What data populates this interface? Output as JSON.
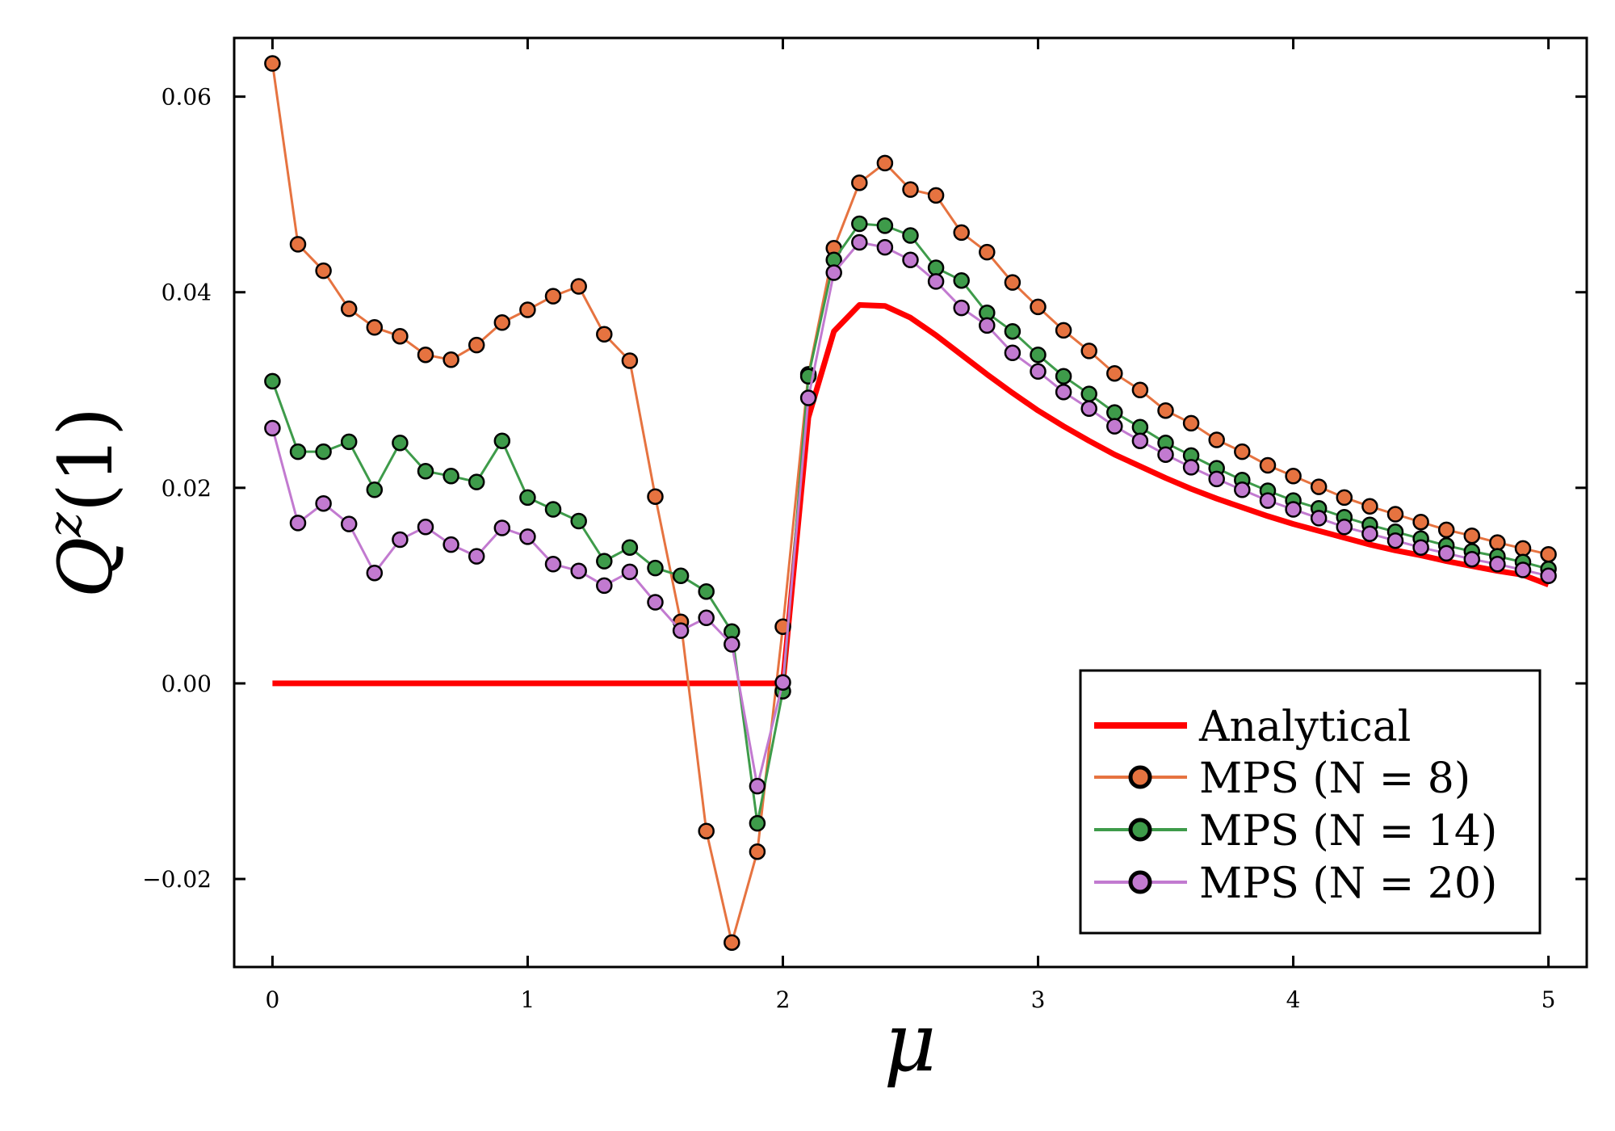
{
  "chart_data": {
    "type": "line",
    "title": "",
    "xlabel": "μ",
    "ylabel_main": "Q",
    "ylabel_sup": "z",
    "ylabel_arg": "(1)",
    "xlim": [
      -0.15,
      5.15
    ],
    "ylim": [
      -0.029,
      0.066
    ],
    "xticks": [
      0,
      1,
      2,
      3,
      4,
      5
    ],
    "xtick_labels": [
      "0",
      "1",
      "2",
      "3",
      "4",
      "5"
    ],
    "yticks": [
      -0.02,
      0.0,
      0.02,
      0.04,
      0.06
    ],
    "ytick_labels": [
      "−0.02",
      "0.00",
      "0.02",
      "0.04",
      "0.06"
    ],
    "grid": false,
    "legend_position": "bottom-right",
    "x": [
      0.0,
      0.1,
      0.2,
      0.3,
      0.4,
      0.5,
      0.6,
      0.7,
      0.8,
      0.9,
      1.0,
      1.1,
      1.2,
      1.3,
      1.4,
      1.5,
      1.6,
      1.7,
      1.8,
      1.9,
      2.0,
      2.1,
      2.2,
      2.3,
      2.4,
      2.5,
      2.6,
      2.7,
      2.8,
      2.9,
      3.0,
      3.1,
      3.2,
      3.3,
      3.4,
      3.5,
      3.6,
      3.7,
      3.8,
      3.9,
      4.0,
      4.1,
      4.2,
      4.3,
      4.4,
      4.5,
      4.6,
      4.7,
      4.8,
      4.9,
      5.0
    ],
    "series": [
      {
        "name": "Analytical",
        "color": "#ff0000",
        "markers": false,
        "values": [
          0,
          0,
          0,
          0,
          0,
          0,
          0,
          0,
          0,
          0,
          0,
          0,
          0,
          0,
          0,
          0,
          0,
          0,
          0,
          0,
          0,
          0.0272,
          0.036,
          0.0387,
          0.0386,
          0.0374,
          0.0356,
          0.0336,
          0.0316,
          0.0297,
          0.0279,
          0.0263,
          0.0248,
          0.0234,
          0.0222,
          0.021,
          0.0199,
          0.0189,
          0.018,
          0.0171,
          0.0163,
          0.0156,
          0.0149,
          0.0142,
          0.0136,
          0.0131,
          0.0125,
          0.012,
          0.0115,
          0.0111,
          0.0101
        ]
      },
      {
        "name": "MPS (N = 8)",
        "color": "#e67340",
        "markers": true,
        "values": [
          0.0634,
          0.0449,
          0.0422,
          0.0383,
          0.0364,
          0.0355,
          0.0336,
          0.0331,
          0.0346,
          0.0369,
          0.0382,
          0.0396,
          0.0406,
          0.0357,
          0.033,
          0.0191,
          0.0063,
          -0.0151,
          -0.0265,
          -0.0172,
          0.0058,
          0.0316,
          0.0445,
          0.0512,
          0.0532,
          0.0505,
          0.0499,
          0.0461,
          0.0441,
          0.041,
          0.0385,
          0.0361,
          0.034,
          0.0317,
          0.03,
          0.0279,
          0.0266,
          0.0249,
          0.0237,
          0.0223,
          0.0212,
          0.0201,
          0.019,
          0.0181,
          0.0173,
          0.0165,
          0.0157,
          0.0151,
          0.0144,
          0.0138,
          0.0132
        ]
      },
      {
        "name": "MPS (N = 14)",
        "color": "#3e9b4a",
        "markers": true,
        "values": [
          0.0309,
          0.0237,
          0.0237,
          0.0247,
          0.0198,
          0.0246,
          0.0217,
          0.0212,
          0.0206,
          0.0248,
          0.019,
          0.0178,
          0.0166,
          0.0125,
          0.0139,
          0.0118,
          0.011,
          0.0094,
          0.0053,
          -0.0143,
          -0.0008,
          0.0314,
          0.0433,
          0.047,
          0.0468,
          0.0458,
          0.0425,
          0.0412,
          0.0379,
          0.036,
          0.0336,
          0.0314,
          0.0296,
          0.0277,
          0.0262,
          0.0246,
          0.0233,
          0.022,
          0.0208,
          0.0197,
          0.0187,
          0.0179,
          0.017,
          0.0162,
          0.0155,
          0.0148,
          0.0141,
          0.0135,
          0.013,
          0.0124,
          0.0117
        ]
      },
      {
        "name": "MPS (N = 20)",
        "color": "#c27ad0",
        "markers": true,
        "values": [
          0.0261,
          0.0164,
          0.0184,
          0.0163,
          0.0113,
          0.0147,
          0.016,
          0.0142,
          0.013,
          0.0159,
          0.015,
          0.0122,
          0.0115,
          0.01,
          0.0114,
          0.0083,
          0.0054,
          0.0067,
          0.004,
          -0.0105,
          0.0001,
          0.0292,
          0.042,
          0.0451,
          0.0446,
          0.0433,
          0.0411,
          0.0384,
          0.0366,
          0.0338,
          0.0319,
          0.0298,
          0.0281,
          0.0263,
          0.0248,
          0.0234,
          0.0221,
          0.0209,
          0.0198,
          0.0187,
          0.0178,
          0.0169,
          0.016,
          0.0153,
          0.0146,
          0.0139,
          0.0133,
          0.0127,
          0.0122,
          0.0116,
          0.011
        ]
      }
    ]
  }
}
